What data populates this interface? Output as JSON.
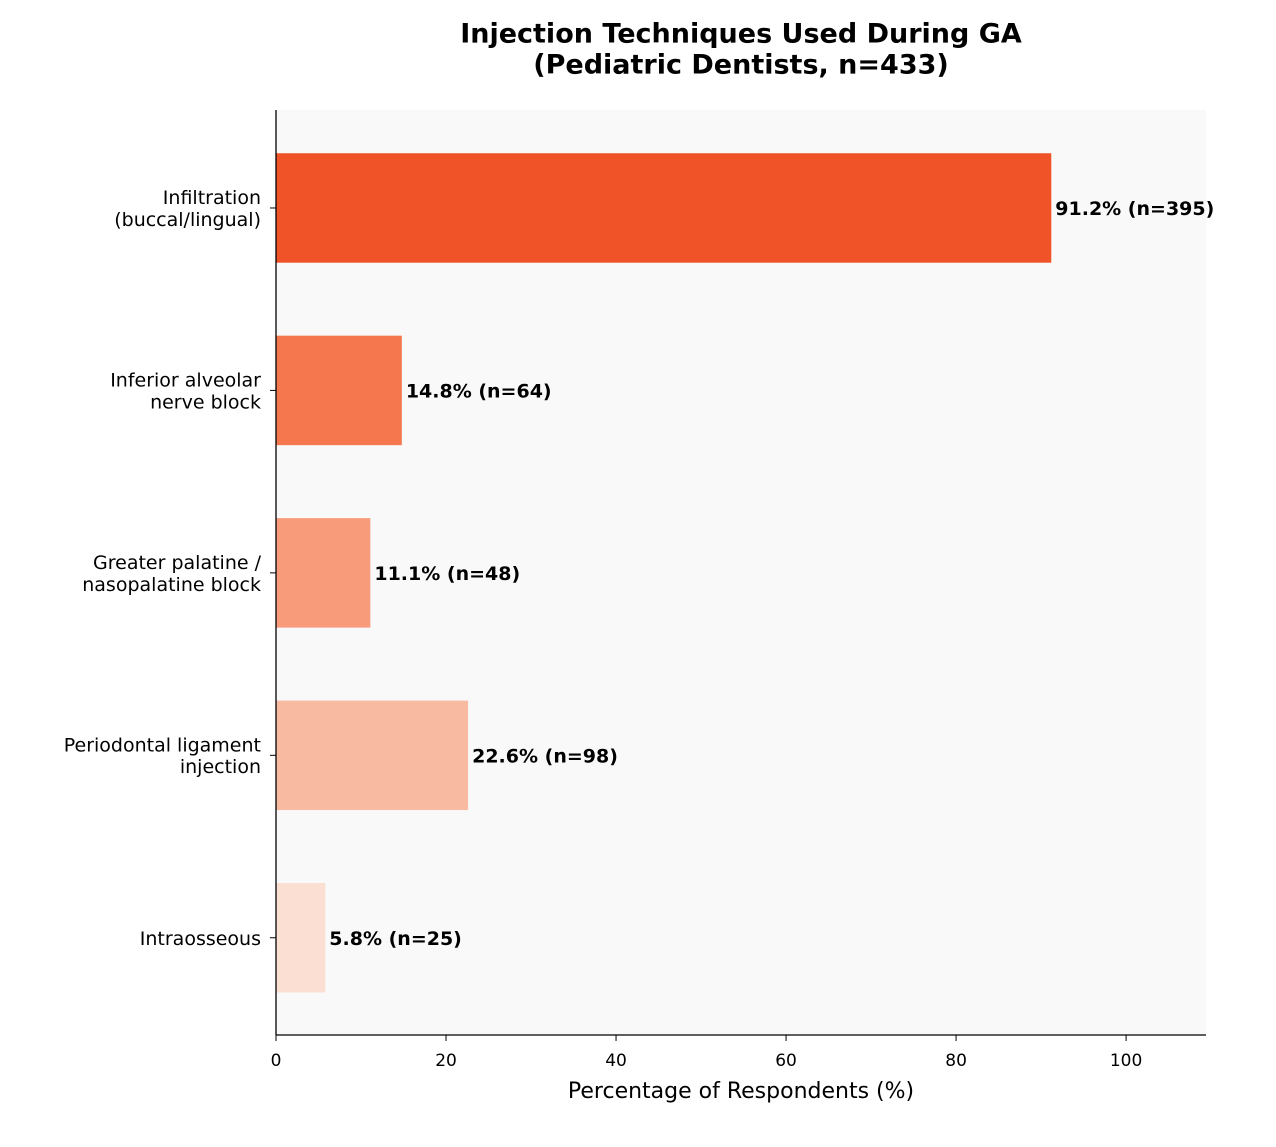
{
  "chart_data": {
    "type": "barh",
    "title": "Injection Techniques Used During GA\n(Pediatric Dentists, n=433)",
    "x_label": "Percentage of Respondents (%)",
    "categories": [
      "Infiltration\n(buccal/lingual)",
      "Inferior alveolar\nnerve block",
      "Greater palatine /\nnasopalatine block",
      "Periodontal ligament\ninjection",
      "Intraosseous"
    ],
    "values": [
      91.2,
      14.8,
      11.1,
      22.6,
      5.8
    ],
    "value_labels": [
      "91.2% (n=395)",
      "14.8% (n=64)",
      "11.1% (n=48)",
      "22.6% (n=98)",
      "5.8% (n=25)"
    ],
    "colors": [
      "#f05327",
      "#f4774d",
      "#f79b7a",
      "#f8bba2",
      "#fbdfd2"
    ],
    "xlim": [
      0,
      109.4
    ],
    "xticks": [
      0,
      20,
      40,
      60,
      80,
      100
    ]
  }
}
